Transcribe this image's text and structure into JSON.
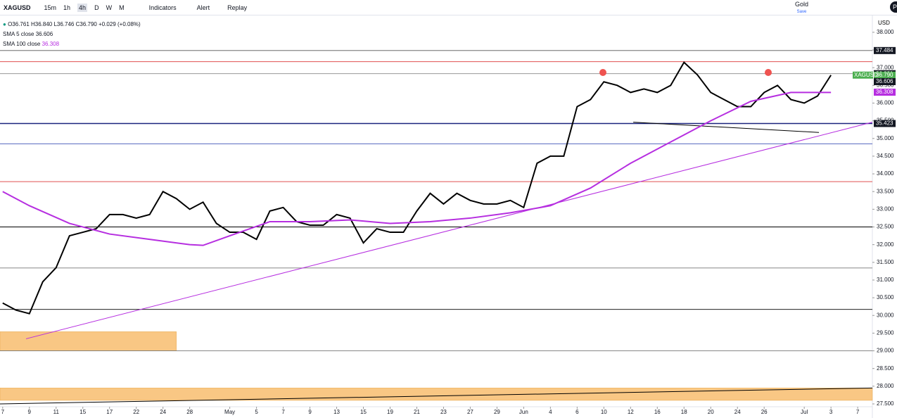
{
  "toolbar": {
    "symbol": "XAGUSD",
    "intervals": [
      "15m",
      "1h",
      "4h",
      "D",
      "W",
      "M"
    ],
    "indicators": "Indicators",
    "alert": "Alert",
    "replay": "Replay",
    "layout": "Gold",
    "save": "Save",
    "currency": "USD",
    "publish": "Pu"
  },
  "legend": {
    "ohlc": "O36.761 H36.840 L36.746 C36.790 +0.029 (+0.08%)",
    "sma5_name": "SMA 5 close",
    "sma5_value": "36.606",
    "sma100_name": "SMA 100 close",
    "sma100_value": "36.308"
  },
  "chart_data": {
    "type": "line",
    "xlim": [
      -0.2,
      65.1
    ],
    "ylim": [
      27.42,
      38.475
    ],
    "xticks": [
      {
        "value": 0,
        "label": "7"
      },
      {
        "value": 2,
        "label": "9"
      },
      {
        "value": 4,
        "label": "11"
      },
      {
        "value": 6,
        "label": "15"
      },
      {
        "value": 8,
        "label": "17"
      },
      {
        "value": 10,
        "label": "22"
      },
      {
        "value": 12,
        "label": "24"
      },
      {
        "value": 14,
        "label": "28"
      },
      {
        "value": 17,
        "label": "May"
      },
      {
        "value": 19,
        "label": "5"
      },
      {
        "value": 21,
        "label": "7"
      },
      {
        "value": 23,
        "label": "9"
      },
      {
        "value": 25,
        "label": "13"
      },
      {
        "value": 27,
        "label": "15"
      },
      {
        "value": 29,
        "label": "19"
      },
      {
        "value": 31,
        "label": "21"
      },
      {
        "value": 33,
        "label": "23"
      },
      {
        "value": 35,
        "label": "27"
      },
      {
        "value": 37,
        "label": "29"
      },
      {
        "value": 39,
        "label": "Jun"
      },
      {
        "value": 41,
        "label": "4"
      },
      {
        "value": 43,
        "label": "6"
      },
      {
        "value": 45,
        "label": "10"
      },
      {
        "value": 47,
        "label": "12"
      },
      {
        "value": 49,
        "label": "16"
      },
      {
        "value": 51,
        "label": "18"
      },
      {
        "value": 53,
        "label": "20"
      },
      {
        "value": 55,
        "label": "24"
      },
      {
        "value": 57,
        "label": "26"
      },
      {
        "value": 60,
        "label": "Jul"
      },
      {
        "value": 62,
        "label": "3"
      },
      {
        "value": 64,
        "label": "7"
      }
    ],
    "yticks": [
      {
        "value": 38,
        "label": "38.000"
      },
      {
        "value": 37.5,
        "label": "37.500"
      },
      {
        "value": 37,
        "label": "37.000"
      },
      {
        "value": 36.5,
        "label": "36.500"
      },
      {
        "value": 36,
        "label": "36.000"
      },
      {
        "value": 35.5,
        "label": "35.500"
      },
      {
        "value": 35,
        "label": "35.000"
      },
      {
        "value": 34.5,
        "label": "34.500"
      },
      {
        "value": 34,
        "label": "34.000"
      },
      {
        "value": 33.5,
        "label": "33.500"
      },
      {
        "value": 33,
        "label": "33.000"
      },
      {
        "value": 32.5,
        "label": "32.500"
      },
      {
        "value": 32,
        "label": "32.000"
      },
      {
        "value": 31.5,
        "label": "31.500"
      },
      {
        "value": 31,
        "label": "31.000"
      },
      {
        "value": 30.5,
        "label": "30.500"
      },
      {
        "value": 30,
        "label": "30.000"
      },
      {
        "value": 29.5,
        "label": "29.500"
      },
      {
        "value": 29,
        "label": "29.000"
      },
      {
        "value": 28.5,
        "label": "28.500"
      },
      {
        "value": 28,
        "label": "28.000"
      },
      {
        "value": 27.5,
        "label": "27.500"
      }
    ],
    "series": [
      {
        "name": "XAGUSD",
        "color": "#000000",
        "x": [
          0,
          1,
          2,
          3,
          4,
          5,
          6,
          7,
          8,
          9,
          10,
          11,
          12,
          13,
          14,
          15,
          16,
          17,
          18,
          19,
          20,
          21,
          22,
          23,
          24,
          25,
          26,
          27,
          28,
          29,
          30,
          31,
          32,
          33,
          34,
          35,
          36,
          37,
          38,
          39,
          40,
          41,
          42,
          43,
          44,
          45,
          46,
          47,
          48,
          49,
          50,
          51,
          52,
          53,
          54,
          55,
          56,
          57,
          58,
          59,
          60,
          61,
          62
        ],
        "values": [
          30.35,
          30.15,
          30.05,
          30.95,
          31.35,
          32.25,
          32.35,
          32.45,
          32.85,
          32.85,
          32.75,
          32.85,
          33.5,
          33.3,
          33.0,
          33.2,
          32.6,
          32.35,
          32.35,
          32.15,
          32.95,
          33.05,
          32.65,
          32.55,
          32.55,
          32.85,
          32.75,
          32.05,
          32.45,
          32.35,
          32.35,
          32.95,
          33.45,
          33.15,
          33.45,
          33.25,
          33.15,
          33.15,
          33.25,
          33.05,
          34.3,
          34.5,
          34.5,
          35.9,
          36.1,
          36.6,
          36.5,
          36.3,
          36.4,
          36.3,
          36.5,
          37.15,
          36.8,
          36.3,
          36.1,
          35.9,
          35.9,
          36.3,
          36.5,
          36.1,
          36.0,
          36.2,
          36.79
        ]
      },
      {
        "name": "SMA 100",
        "color": "#b62ee0",
        "x": [
          0,
          2,
          5,
          8,
          11,
          14,
          15,
          17,
          20,
          23,
          26,
          29,
          32,
          35,
          38,
          41,
          44,
          47,
          50,
          53,
          56,
          59,
          62
        ],
        "values": [
          33.5,
          33.1,
          32.6,
          32.3,
          32.15,
          32.0,
          31.98,
          32.25,
          32.65,
          32.65,
          32.7,
          32.6,
          32.65,
          32.75,
          32.9,
          33.1,
          33.6,
          34.3,
          34.9,
          35.5,
          36.05,
          36.3,
          36.3
        ]
      }
    ],
    "levels": [
      {
        "value": 37.484,
        "color": "#555555"
      },
      {
        "value": 37.17,
        "color": "#e05050"
      },
      {
        "value": 36.831,
        "color": "#888888"
      },
      {
        "value": 35.423,
        "color": "#1a237e"
      },
      {
        "value": 34.85,
        "color": "#3f51b5"
      },
      {
        "value": 33.78,
        "color": "#e05050"
      },
      {
        "value": 32.5,
        "color": "#000000"
      },
      {
        "value": 31.34,
        "color": "#777777"
      },
      {
        "value": 30.17,
        "color": "#000000"
      },
      {
        "value": 29.0,
        "color": "#777777"
      }
    ],
    "trendlines": [
      {
        "x": [
          1.75,
          65.1
        ],
        "y": [
          29.34,
          35.46
        ],
        "color": "#b62ee0"
      },
      {
        "x": [
          47.2,
          61.1
        ],
        "y": [
          35.46,
          35.17
        ],
        "color": "#000000"
      },
      {
        "x": [
          -0.2,
          65.1
        ],
        "y": [
          27.5,
          27.95
        ],
        "color": "#000000"
      }
    ],
    "zones": [
      {
        "x": [
          -0.2,
          13
        ],
        "y": [
          29.0,
          29.54
        ],
        "color": "#f9c784"
      },
      {
        "x": [
          -0.2,
          65.1
        ],
        "y": [
          27.6,
          27.95
        ],
        "color": "#f9c784"
      }
    ],
    "price_badges": [
      {
        "value": 37.484,
        "label": "37.484",
        "color": "#131722"
      },
      {
        "value": 36.831,
        "label": "36.831",
        "color": "#131722"
      },
      {
        "value": 36.79,
        "label": "36.790",
        "color": "#4caf50"
      },
      {
        "value": 36.606,
        "label": "36.606",
        "color": "#131722"
      },
      {
        "value": 36.308,
        "label": "36.308",
        "color": "#b62ee0"
      },
      {
        "value": 35.423,
        "label": "35.423",
        "color": "#131722"
      }
    ]
  }
}
